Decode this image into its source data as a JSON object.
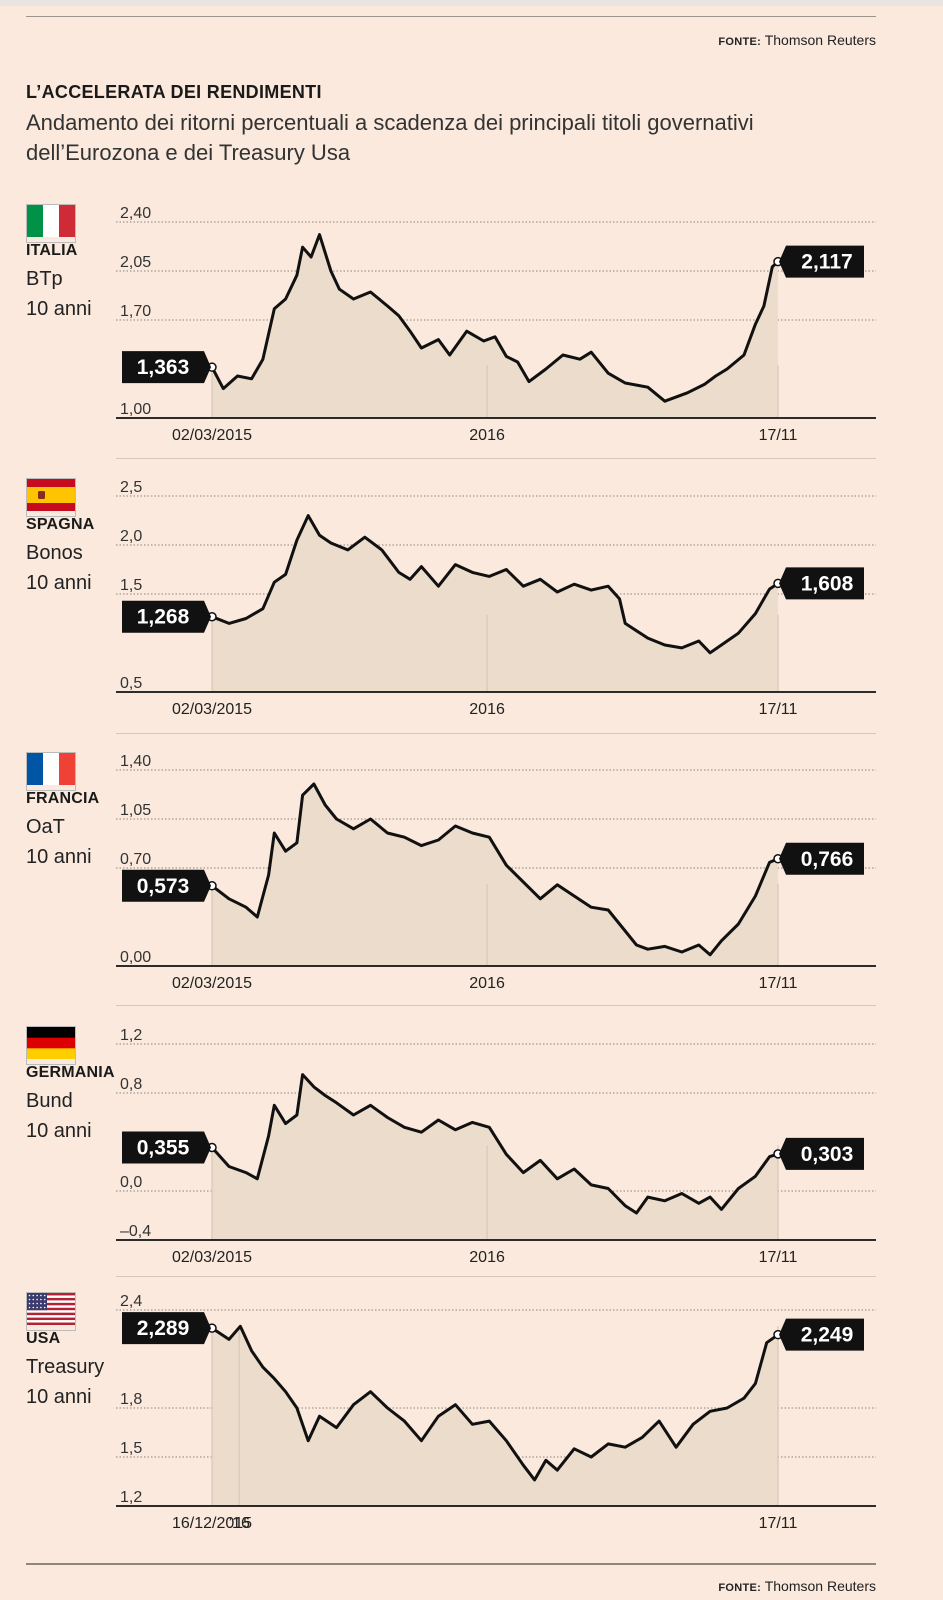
{
  "source_label": "FONTE:",
  "source_name": "Thomson Reuters",
  "title": "L’ACCELERATA DEI RENDIMENTI",
  "subtitle": "Andamento dei ritorni percentuali a scadenza dei principali titoli governativi dell’Eurozona e dei Treasury Usa",
  "colors": {
    "background": "#fae9dc",
    "area_fill": "#ecdccc",
    "line": "#111111",
    "label_box": "#111111",
    "label_text": "#ffffff",
    "gridline": "#8c847c"
  },
  "chart_data": [
    {
      "type": "area",
      "country": "ITALIA",
      "bond": "BTp",
      "maturity": "10 anni",
      "flag": [
        "#009246",
        "#ffffff",
        "#ce2b37"
      ],
      "ylim": [
        1.0,
        2.4
      ],
      "yticks": [
        1.0,
        1.7,
        2.05,
        2.4
      ],
      "ytick_labels": [
        "1,00",
        "1,70",
        "2,05",
        "2,40"
      ],
      "xticks": [
        "02/03/2015",
        "2016",
        "17/11"
      ],
      "tick_x": [
        0,
        0.486,
        1.0
      ],
      "start_label": "1,363",
      "end_label": "2,117",
      "x": [
        0,
        0.02,
        0.045,
        0.07,
        0.09,
        0.11,
        0.13,
        0.15,
        0.16,
        0.175,
        0.19,
        0.21,
        0.225,
        0.25,
        0.28,
        0.31,
        0.33,
        0.35,
        0.37,
        0.4,
        0.42,
        0.45,
        0.48,
        0.5,
        0.52,
        0.54,
        0.56,
        0.59,
        0.62,
        0.65,
        0.67,
        0.7,
        0.73,
        0.77,
        0.8,
        0.84,
        0.87,
        0.89,
        0.91,
        0.94,
        0.96,
        0.975,
        0.99,
        1.0
      ],
      "values": [
        1.363,
        1.21,
        1.3,
        1.28,
        1.42,
        1.78,
        1.85,
        2.02,
        2.22,
        2.15,
        2.31,
        2.05,
        1.92,
        1.85,
        1.9,
        1.8,
        1.73,
        1.62,
        1.5,
        1.56,
        1.45,
        1.62,
        1.55,
        1.58,
        1.44,
        1.4,
        1.26,
        1.35,
        1.45,
        1.42,
        1.47,
        1.32,
        1.25,
        1.22,
        1.12,
        1.18,
        1.24,
        1.3,
        1.35,
        1.45,
        1.67,
        1.8,
        2.08,
        2.117
      ]
    },
    {
      "type": "area",
      "country": "SPAGNA",
      "bond": "Bonos",
      "maturity": "10 anni",
      "flag": [
        "#c60b1e",
        "#ffc400",
        "#c60b1e"
      ],
      "ylim": [
        0.5,
        2.5
      ],
      "yticks": [
        0.5,
        1.5,
        2.0,
        2.5
      ],
      "ytick_labels": [
        "0,5",
        "1,5",
        "2,0",
        "2,5"
      ],
      "xticks": [
        "02/03/2015",
        "2016",
        "17/11"
      ],
      "tick_x": [
        0,
        0.486,
        1.0
      ],
      "start_label": "1,268",
      "end_label": "1,608",
      "x": [
        0,
        0.03,
        0.06,
        0.09,
        0.11,
        0.13,
        0.15,
        0.17,
        0.19,
        0.21,
        0.24,
        0.27,
        0.3,
        0.33,
        0.35,
        0.37,
        0.4,
        0.43,
        0.46,
        0.49,
        0.52,
        0.55,
        0.58,
        0.61,
        0.64,
        0.67,
        0.7,
        0.72,
        0.73,
        0.77,
        0.8,
        0.83,
        0.86,
        0.88,
        0.9,
        0.93,
        0.96,
        0.985,
        1.0
      ],
      "values": [
        1.268,
        1.2,
        1.25,
        1.35,
        1.62,
        1.7,
        2.05,
        2.3,
        2.1,
        2.02,
        1.95,
        2.08,
        1.95,
        1.72,
        1.65,
        1.78,
        1.58,
        1.8,
        1.72,
        1.68,
        1.75,
        1.58,
        1.65,
        1.52,
        1.6,
        1.54,
        1.58,
        1.45,
        1.2,
        1.05,
        0.98,
        0.95,
        1.02,
        0.9,
        0.98,
        1.1,
        1.3,
        1.55,
        1.608
      ]
    },
    {
      "type": "area",
      "country": "FRANCIA",
      "bond": "OaT",
      "maturity": "10 anni",
      "flag": [
        "#0055a4",
        "#ffffff",
        "#ef4135"
      ],
      "ylim": [
        0.0,
        1.4
      ],
      "yticks": [
        0.0,
        0.7,
        1.05,
        1.4
      ],
      "ytick_labels": [
        "0,00",
        "0,70",
        "1,05",
        "1,40"
      ],
      "xticks": [
        "02/03/2015",
        "2016",
        "17/11"
      ],
      "tick_x": [
        0,
        0.486,
        1.0
      ],
      "start_label": "0,573",
      "end_label": "0,766",
      "x": [
        0,
        0.03,
        0.06,
        0.08,
        0.1,
        0.11,
        0.13,
        0.15,
        0.16,
        0.18,
        0.2,
        0.22,
        0.25,
        0.28,
        0.31,
        0.34,
        0.37,
        0.4,
        0.43,
        0.46,
        0.49,
        0.52,
        0.55,
        0.58,
        0.61,
        0.64,
        0.67,
        0.7,
        0.73,
        0.75,
        0.77,
        0.8,
        0.83,
        0.86,
        0.88,
        0.9,
        0.93,
        0.96,
        0.985,
        1.0
      ],
      "values": [
        0.573,
        0.48,
        0.42,
        0.35,
        0.65,
        0.95,
        0.82,
        0.88,
        1.22,
        1.3,
        1.15,
        1.05,
        0.98,
        1.05,
        0.95,
        0.92,
        0.86,
        0.9,
        1.0,
        0.95,
        0.92,
        0.72,
        0.6,
        0.48,
        0.58,
        0.5,
        0.42,
        0.4,
        0.25,
        0.15,
        0.12,
        0.14,
        0.1,
        0.15,
        0.08,
        0.18,
        0.3,
        0.5,
        0.74,
        0.766
      ]
    },
    {
      "type": "area",
      "country": "GERMANIA",
      "bond": "Bund",
      "maturity": "10 anni",
      "flag": [
        "#000000",
        "#dd0000",
        "#ffce00"
      ],
      "ylim": [
        -0.4,
        1.2
      ],
      "yticks": [
        -0.4,
        0.0,
        0.8,
        1.2
      ],
      "ytick_labels": [
        "–0,4",
        "0,0",
        "0,8",
        "1,2"
      ],
      "xticks": [
        "02/03/2015",
        "2016",
        "17/11"
      ],
      "tick_x": [
        0,
        0.486,
        1.0
      ],
      "start_label": "0,355",
      "end_label": "0,303",
      "x": [
        0,
        0.03,
        0.06,
        0.08,
        0.1,
        0.11,
        0.13,
        0.15,
        0.16,
        0.18,
        0.2,
        0.22,
        0.25,
        0.28,
        0.31,
        0.34,
        0.37,
        0.4,
        0.43,
        0.46,
        0.49,
        0.52,
        0.55,
        0.58,
        0.61,
        0.64,
        0.67,
        0.7,
        0.73,
        0.75,
        0.77,
        0.8,
        0.83,
        0.86,
        0.88,
        0.9,
        0.93,
        0.96,
        0.985,
        1.0
      ],
      "values": [
        0.355,
        0.2,
        0.15,
        0.1,
        0.45,
        0.7,
        0.55,
        0.62,
        0.95,
        0.85,
        0.78,
        0.72,
        0.62,
        0.7,
        0.6,
        0.52,
        0.48,
        0.58,
        0.5,
        0.56,
        0.52,
        0.3,
        0.15,
        0.25,
        0.1,
        0.18,
        0.05,
        0.02,
        -0.12,
        -0.18,
        -0.05,
        -0.08,
        -0.02,
        -0.1,
        -0.05,
        -0.15,
        0.02,
        0.12,
        0.28,
        0.303
      ]
    },
    {
      "type": "area",
      "country": "USA",
      "bond": "Treasury",
      "maturity": "10 anni",
      "flag": [
        "#b22234",
        "#ffffff",
        "#3c3b6e"
      ],
      "ylim": [
        1.2,
        2.4
      ],
      "yticks": [
        1.2,
        1.5,
        1.8,
        2.4
      ],
      "ytick_labels": [
        "1,2",
        "1,5",
        "1,8",
        "2,4"
      ],
      "xticks": [
        "16/12/2015",
        "’16",
        "17/11"
      ],
      "tick_x": [
        0,
        0.048,
        1.0
      ],
      "start_label": "2,289",
      "end_label": "2,249",
      "x": [
        0,
        0.03,
        0.05,
        0.07,
        0.09,
        0.11,
        0.13,
        0.15,
        0.17,
        0.19,
        0.22,
        0.25,
        0.28,
        0.31,
        0.34,
        0.37,
        0.4,
        0.43,
        0.46,
        0.49,
        0.52,
        0.55,
        0.57,
        0.59,
        0.61,
        0.64,
        0.67,
        0.7,
        0.73,
        0.76,
        0.79,
        0.82,
        0.85,
        0.88,
        0.91,
        0.94,
        0.96,
        0.98,
        1.0
      ],
      "values": [
        2.289,
        2.22,
        2.3,
        2.15,
        2.05,
        1.98,
        1.9,
        1.8,
        1.6,
        1.75,
        1.68,
        1.82,
        1.9,
        1.8,
        1.72,
        1.6,
        1.75,
        1.82,
        1.7,
        1.72,
        1.6,
        1.45,
        1.36,
        1.48,
        1.42,
        1.55,
        1.5,
        1.58,
        1.56,
        1.62,
        1.72,
        1.56,
        1.7,
        1.78,
        1.8,
        1.86,
        1.95,
        2.2,
        2.249
      ]
    }
  ]
}
